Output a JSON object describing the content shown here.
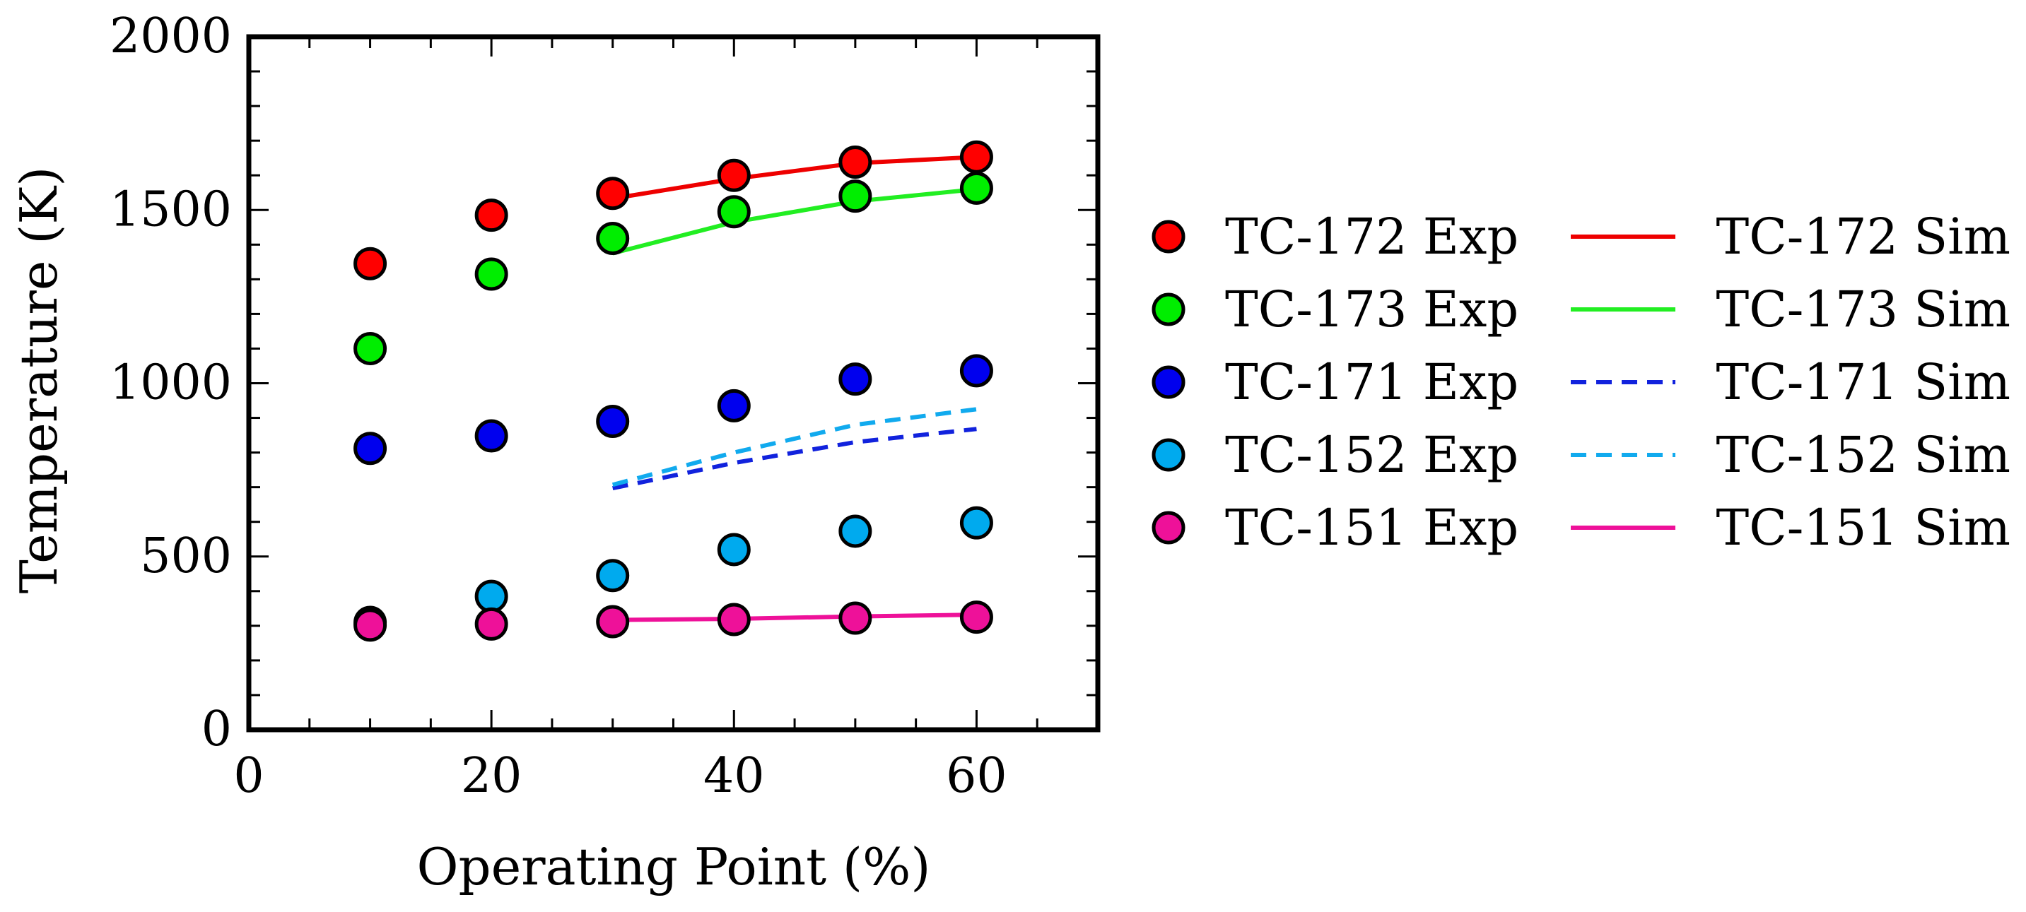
{
  "chart_data": {
    "type": "scatter",
    "title": "",
    "xlabel": "Operating Point (%)",
    "ylabel": "Temperature (K)",
    "xlim": [
      0,
      70
    ],
    "ylim": [
      0,
      2000
    ],
    "xticks": [
      0,
      20,
      40,
      60
    ],
    "yticks": [
      0,
      500,
      1000,
      1500,
      2000
    ],
    "x_tick_labels": [
      "0",
      "20",
      "40",
      "60"
    ],
    "y_tick_labels": [
      "0",
      "500",
      "1000",
      "1500",
      "2000"
    ],
    "grid": false,
    "legend_position": "right",
    "experimental_series": [
      {
        "name": "TC-172 Exp",
        "color": "#ff0000",
        "x": [
          10,
          20,
          30,
          40,
          50,
          60
        ],
        "y": [
          1345,
          1485,
          1548,
          1600,
          1638,
          1653
        ]
      },
      {
        "name": "TC-173 Exp",
        "color": "#00ee00",
        "x": [
          10,
          20,
          30,
          40,
          50,
          60
        ],
        "y": [
          1100,
          1315,
          1418,
          1495,
          1540,
          1563
        ]
      },
      {
        "name": "TC-171 Exp",
        "color": "#0000ee",
        "x": [
          10,
          20,
          30,
          40,
          50,
          60
        ],
        "y": [
          812,
          848,
          890,
          935,
          1012,
          1036
        ]
      },
      {
        "name": "TC-152 Exp",
        "color": "#00aaee",
        "x": [
          10,
          20,
          30,
          40,
          50,
          60
        ],
        "y": [
          310,
          385,
          445,
          520,
          573,
          597
        ]
      },
      {
        "name": "TC-151 Exp",
        "color": "#ee1199",
        "x": [
          10,
          20,
          30,
          40,
          50,
          60
        ],
        "y": [
          302,
          305,
          312,
          318,
          322,
          325
        ]
      }
    ],
    "simulation_series": [
      {
        "name": "TC-172 Sim",
        "color": "#ee0000",
        "dash": "solid",
        "x": [
          30,
          40,
          50,
          60
        ],
        "y": [
          1533,
          1590,
          1635,
          1653
        ]
      },
      {
        "name": "TC-173 Sim",
        "color": "#22ee22",
        "dash": "solid",
        "x": [
          30,
          40,
          50,
          60
        ],
        "y": [
          1375,
          1465,
          1525,
          1560
        ]
      },
      {
        "name": "TC-171 Sim",
        "color": "#1122dd",
        "dash": "dashed",
        "x": [
          30,
          40,
          50,
          60
        ],
        "y": [
          697,
          770,
          830,
          868
        ]
      },
      {
        "name": "TC-152 Sim",
        "color": "#11aaee",
        "dash": "dashed",
        "x": [
          30,
          40,
          50,
          60
        ],
        "y": [
          707,
          800,
          880,
          925
        ]
      },
      {
        "name": "TC-151 Sim",
        "color": "#ee1199",
        "dash": "solid",
        "x": [
          30,
          40,
          50,
          60
        ],
        "y": [
          317,
          320,
          327,
          332
        ]
      }
    ]
  }
}
